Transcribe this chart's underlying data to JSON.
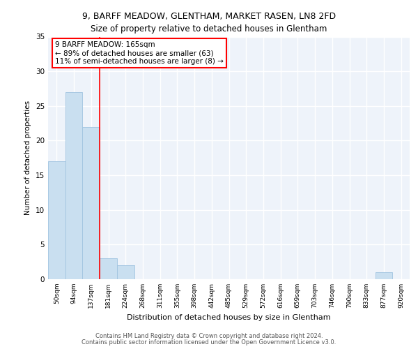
{
  "title1": "9, BARFF MEADOW, GLENTHAM, MARKET RASEN, LN8 2FD",
  "title2": "Size of property relative to detached houses in Glentham",
  "xlabel": "Distribution of detached houses by size in Glentham",
  "ylabel": "Number of detached properties",
  "bin_labels": [
    "50sqm",
    "94sqm",
    "137sqm",
    "181sqm",
    "224sqm",
    "268sqm",
    "311sqm",
    "355sqm",
    "398sqm",
    "442sqm",
    "485sqm",
    "529sqm",
    "572sqm",
    "616sqm",
    "659sqm",
    "703sqm",
    "746sqm",
    "790sqm",
    "833sqm",
    "877sqm",
    "920sqm"
  ],
  "bar_values": [
    17,
    27,
    22,
    3,
    2,
    0,
    0,
    0,
    0,
    0,
    0,
    0,
    0,
    0,
    0,
    0,
    0,
    0,
    0,
    1,
    0
  ],
  "bar_color": "#c9dff0",
  "bar_edge_color": "#a0c4e0",
  "vline_x_index": 2.5,
  "vline_color": "red",
  "annotation_text": "9 BARFF MEADOW: 165sqm\n← 89% of detached houses are smaller (63)\n11% of semi-detached houses are larger (8) →",
  "annotation_box_color": "white",
  "annotation_box_edge_color": "red",
  "ylim": [
    0,
    35
  ],
  "yticks": [
    0,
    5,
    10,
    15,
    20,
    25,
    30,
    35
  ],
  "bg_color": "#eef3fa",
  "grid_color": "#ffffff",
  "footer1": "Contains HM Land Registry data © Crown copyright and database right 2024.",
  "footer2": "Contains public sector information licensed under the Open Government Licence v3.0."
}
